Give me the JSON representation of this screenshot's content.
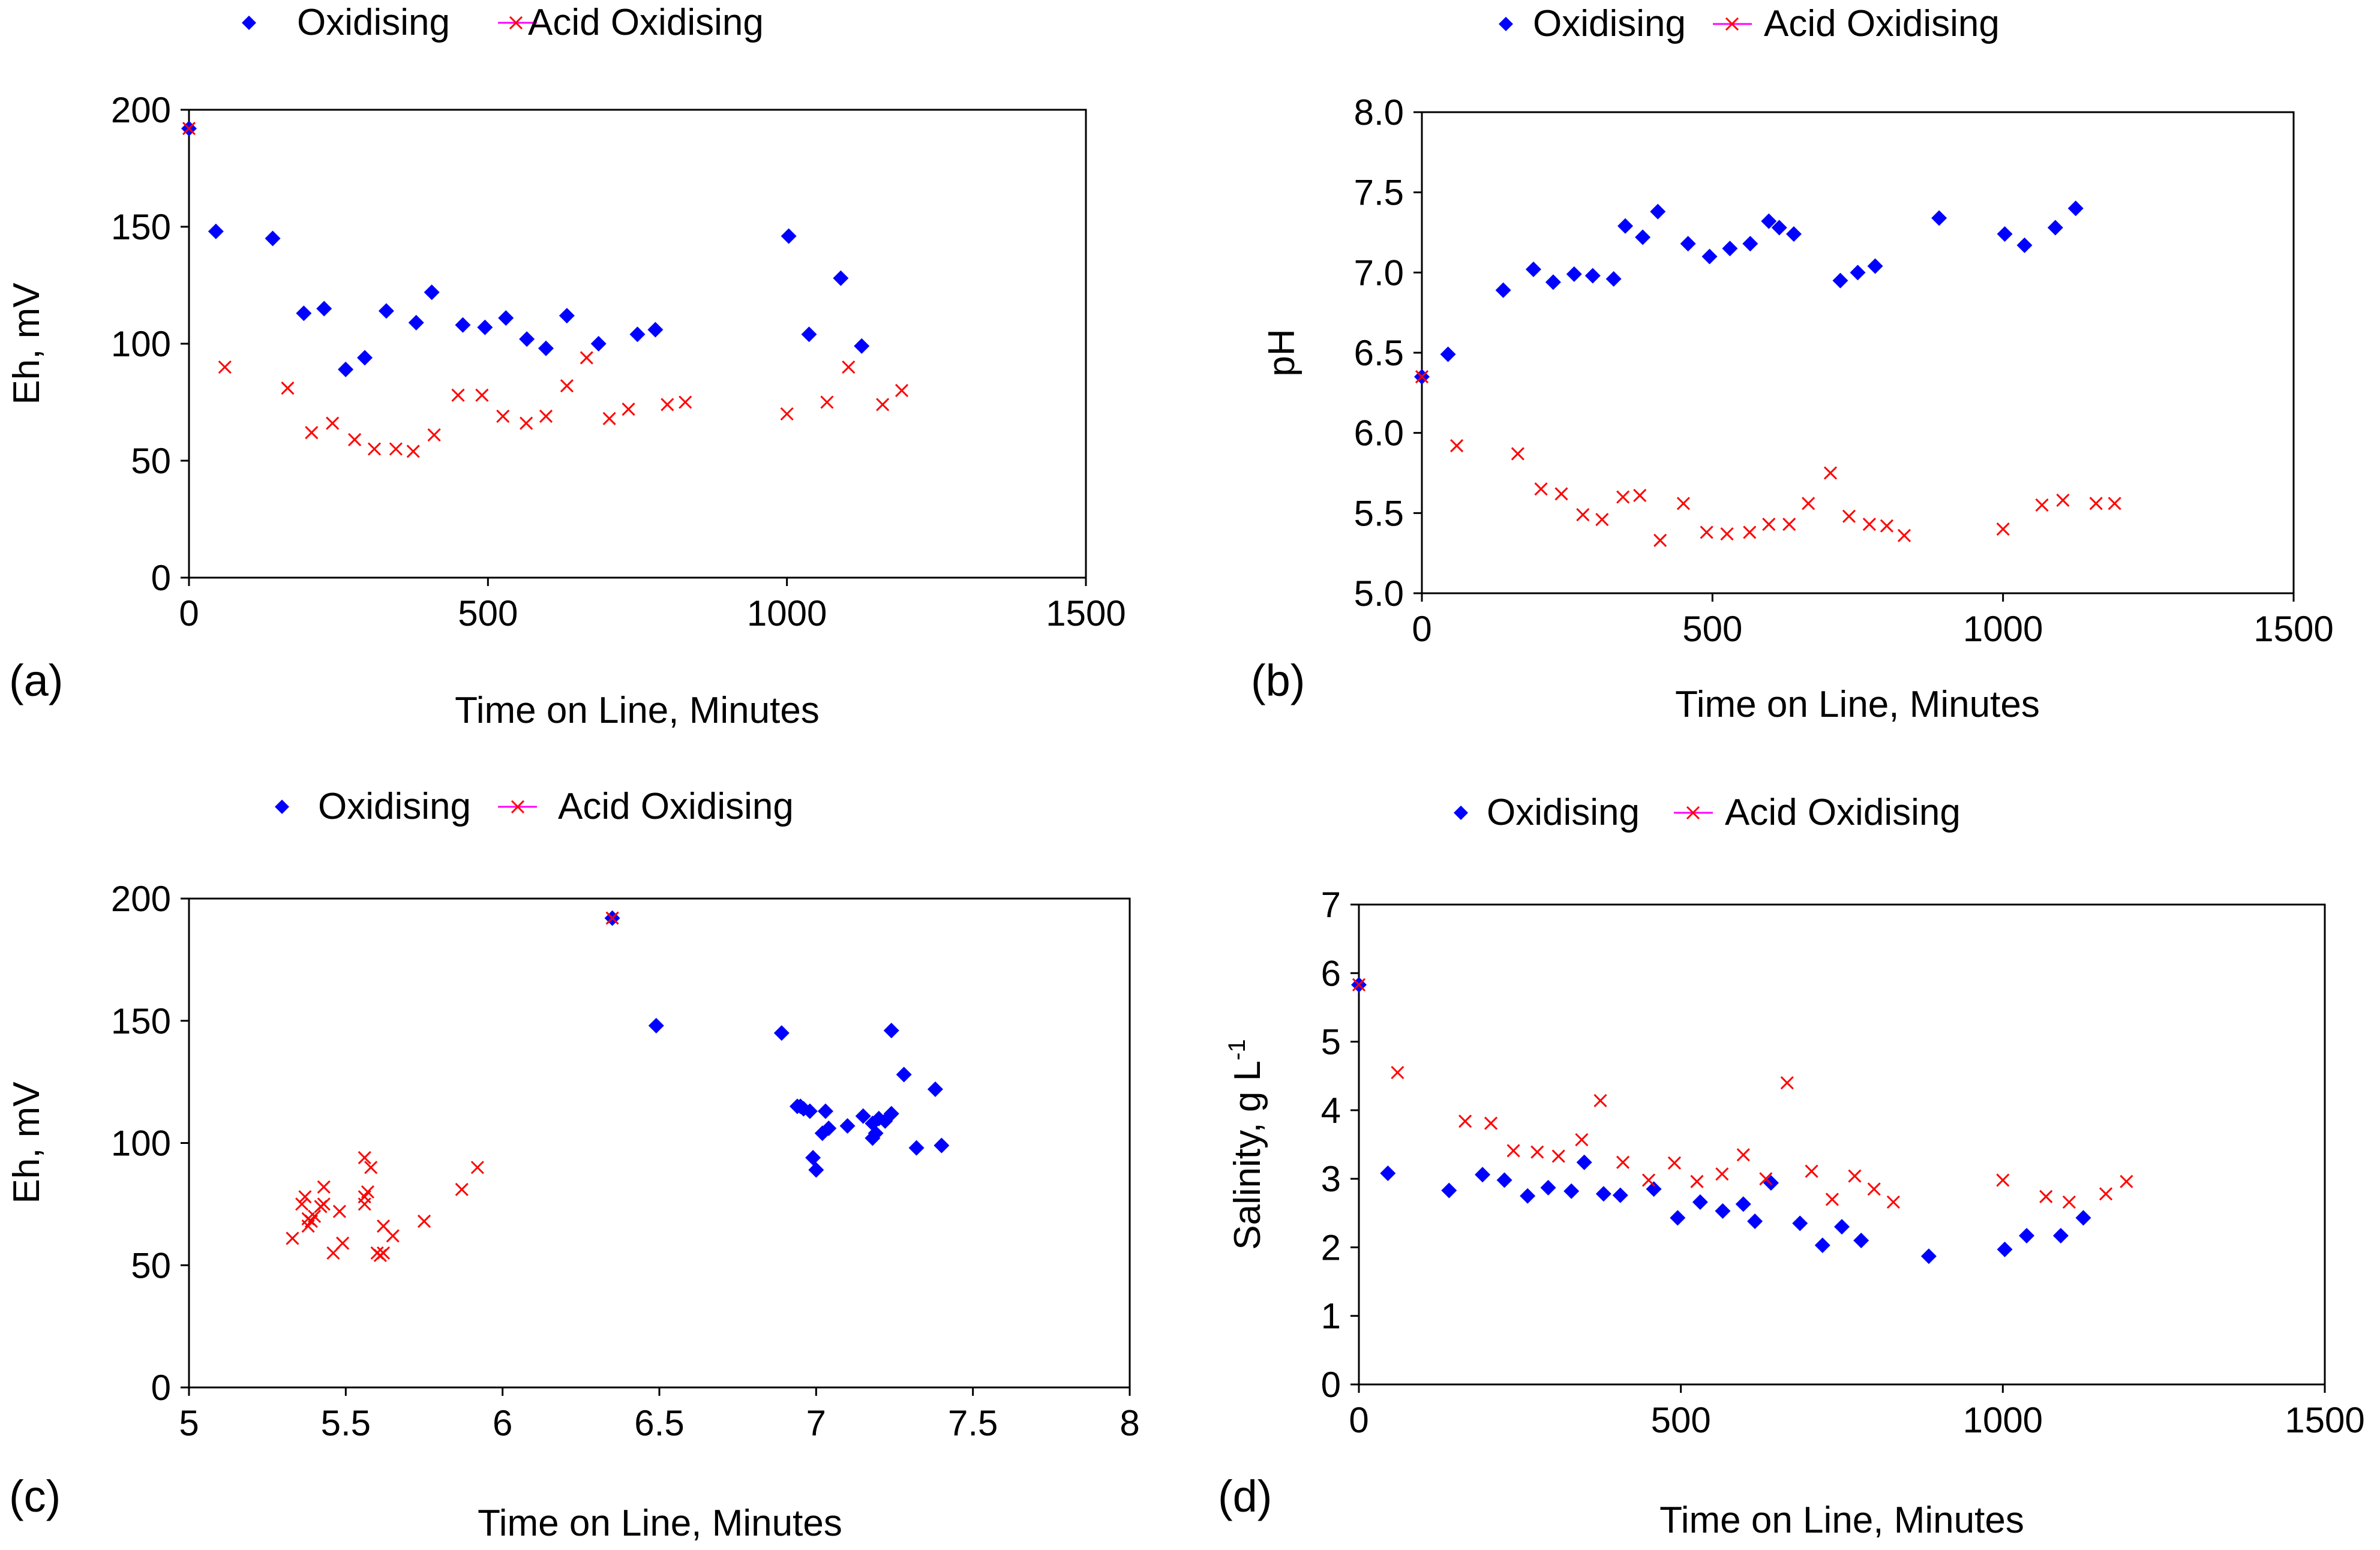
{
  "colors": {
    "oxidising": "#0000ff",
    "acid_oxidising": "#ff0000",
    "acid_line": "#ff00ff",
    "axis": "#000000"
  },
  "chart_data": [
    {
      "panel": "(a)",
      "type": "scatter",
      "xlabel": "Time on Line, Minutes",
      "ylabel": "Eh, mV",
      "ylabel_sup": "",
      "xlim": [
        0,
        1500
      ],
      "ylim": [
        0,
        200
      ],
      "xticks": [
        0,
        500,
        1000,
        1500
      ],
      "xtick_labels": [
        "0",
        "500",
        "1000",
        "1500"
      ],
      "yticks": [
        0,
        50,
        100,
        150,
        200
      ],
      "ytick_labels": [
        "0",
        "50",
        "100",
        "150",
        "200"
      ],
      "legend": [
        "Oxidising",
        "Acid Oxidising"
      ],
      "legend_position": "top",
      "series": [
        {
          "name": "Oxidising",
          "marker": "diamond",
          "points": [
            [
              0,
              192
            ],
            [
              45,
              148
            ],
            [
              140,
              145
            ],
            [
              192,
              113
            ],
            [
              226,
              115
            ],
            [
              262,
              89
            ],
            [
              294,
              94
            ],
            [
              330,
              114
            ],
            [
              380,
              109
            ],
            [
              406,
              122
            ],
            [
              458,
              108
            ],
            [
              495,
              107
            ],
            [
              530,
              111
            ],
            [
              565,
              102
            ],
            [
              597,
              98
            ],
            [
              632,
              112
            ],
            [
              685,
              100
            ],
            [
              750,
              104
            ],
            [
              780,
              106
            ],
            [
              1003,
              146
            ],
            [
              1037,
              104
            ],
            [
              1090,
              128
            ],
            [
              1125,
              99
            ]
          ]
        },
        {
          "name": "Acid Oxidising",
          "marker": "x",
          "points": [
            [
              0,
              192
            ],
            [
              60,
              90
            ],
            [
              165,
              81
            ],
            [
              205,
              62
            ],
            [
              240,
              66
            ],
            [
              277,
              59
            ],
            [
              310,
              55
            ],
            [
              346,
              55
            ],
            [
              375,
              54
            ],
            [
              410,
              61
            ],
            [
              450,
              78
            ],
            [
              490,
              78
            ],
            [
              525,
              69
            ],
            [
              564,
              66
            ],
            [
              597,
              69
            ],
            [
              632,
              82
            ],
            [
              665,
              94
            ],
            [
              703,
              68
            ],
            [
              735,
              72
            ],
            [
              800,
              74
            ],
            [
              830,
              75
            ],
            [
              1000,
              70
            ],
            [
              1067,
              75
            ],
            [
              1103,
              90
            ],
            [
              1160,
              74
            ],
            [
              1192,
              80
            ]
          ]
        }
      ]
    },
    {
      "panel": "(b)",
      "type": "scatter",
      "xlabel": "Time on Line, Minutes",
      "ylabel": "pH",
      "ylabel_sup": "",
      "xlim": [
        0,
        1500
      ],
      "ylim": [
        5.0,
        8.0
      ],
      "xticks": [
        0,
        500,
        1000,
        1500
      ],
      "xtick_labels": [
        "0",
        "500",
        "1000",
        "1500"
      ],
      "yticks": [
        5.0,
        5.5,
        6.0,
        6.5,
        7.0,
        7.5,
        8.0
      ],
      "ytick_labels": [
        "5.0",
        "5.5",
        "6.0",
        "6.5",
        "7.0",
        "7.5",
        "8.0"
      ],
      "legend": [
        "Oxidising",
        "Acid Oxidising"
      ],
      "legend_position": "top",
      "series": [
        {
          "name": "Oxidising",
          "marker": "diamond",
          "points": [
            [
              0,
              6.35
            ],
            [
              45,
              6.49
            ],
            [
              140,
              6.89
            ],
            [
              192,
              7.02
            ],
            [
              226,
              6.94
            ],
            [
              262,
              6.99
            ],
            [
              294,
              6.98
            ],
            [
              330,
              6.96
            ],
            [
              350,
              7.29
            ],
            [
              380,
              7.22
            ],
            [
              406,
              7.38
            ],
            [
              458,
              7.18
            ],
            [
              495,
              7.1
            ],
            [
              530,
              7.15
            ],
            [
              565,
              7.18
            ],
            [
              597,
              7.32
            ],
            [
              615,
              7.28
            ],
            [
              640,
              7.24
            ],
            [
              720,
              6.95
            ],
            [
              750,
              7.0
            ],
            [
              780,
              7.04
            ],
            [
              890,
              7.34
            ],
            [
              1003,
              7.24
            ],
            [
              1037,
              7.17
            ],
            [
              1090,
              7.28
            ],
            [
              1125,
              7.4
            ]
          ]
        },
        {
          "name": "Acid Oxidising",
          "marker": "x",
          "points": [
            [
              0,
              6.35
            ],
            [
              60,
              5.92
            ],
            [
              165,
              5.87
            ],
            [
              205,
              5.65
            ],
            [
              240,
              5.62
            ],
            [
              277,
              5.49
            ],
            [
              310,
              5.46
            ],
            [
              346,
              5.6
            ],
            [
              375,
              5.61
            ],
            [
              410,
              5.33
            ],
            [
              450,
              5.56
            ],
            [
              490,
              5.38
            ],
            [
              525,
              5.37
            ],
            [
              564,
              5.38
            ],
            [
              597,
              5.43
            ],
            [
              632,
              5.43
            ],
            [
              665,
              5.56
            ],
            [
              703,
              5.75
            ],
            [
              735,
              5.48
            ],
            [
              770,
              5.43
            ],
            [
              800,
              5.42
            ],
            [
              830,
              5.36
            ],
            [
              1000,
              5.4
            ],
            [
              1067,
              5.55
            ],
            [
              1103,
              5.58
            ],
            [
              1160,
              5.56
            ],
            [
              1192,
              5.56
            ]
          ]
        }
      ]
    },
    {
      "panel": "(c)",
      "type": "scatter",
      "xlabel": "Time on Line, Minutes",
      "ylabel": "Eh, mV",
      "ylabel_sup": "",
      "xlim": [
        5,
        8
      ],
      "ylim": [
        0,
        200
      ],
      "xticks": [
        5,
        5.5,
        6,
        6.5,
        7,
        7.5,
        8
      ],
      "xtick_labels": [
        "5",
        "5.5",
        "6",
        "6.5",
        "7",
        "7.5",
        "8"
      ],
      "yticks": [
        0,
        50,
        100,
        150,
        200
      ],
      "ytick_labels": [
        "0",
        "50",
        "100",
        "150",
        "200"
      ],
      "legend": [
        "Oxidising",
        "Acid Oxidising"
      ],
      "legend_position": "top",
      "series": [
        {
          "name": "Oxidising",
          "marker": "diamond",
          "points": [
            [
              6.35,
              192
            ],
            [
              6.49,
              148
            ],
            [
              6.89,
              145
            ],
            [
              6.94,
              115
            ],
            [
              6.96,
              114
            ],
            [
              6.98,
              113
            ],
            [
              6.99,
              94
            ],
            [
              7.0,
              89
            ],
            [
              7.02,
              104
            ],
            [
              7.04,
              106
            ],
            [
              7.1,
              107
            ],
            [
              7.15,
              111
            ],
            [
              7.18,
              108
            ],
            [
              7.18,
              102
            ],
            [
              7.22,
              109
            ],
            [
              7.24,
              112
            ],
            [
              7.24,
              146
            ],
            [
              7.28,
              128
            ],
            [
              7.32,
              98
            ],
            [
              7.38,
              122
            ],
            [
              7.4,
              99
            ],
            [
              6.95,
              115
            ],
            [
              7.03,
              113
            ],
            [
              7.19,
              104
            ],
            [
              7.2,
              110
            ]
          ]
        },
        {
          "name": "Acid Oxidising",
          "marker": "x",
          "points": [
            [
              6.35,
              192
            ],
            [
              5.92,
              90
            ],
            [
              5.87,
              81
            ],
            [
              5.75,
              68
            ],
            [
              5.65,
              62
            ],
            [
              5.62,
              66
            ],
            [
              5.62,
              55
            ],
            [
              5.61,
              54
            ],
            [
              5.6,
              55
            ],
            [
              5.49,
              59
            ],
            [
              5.46,
              55
            ],
            [
              5.56,
              75
            ],
            [
              5.56,
              78
            ],
            [
              5.56,
              94
            ],
            [
              5.58,
              90
            ],
            [
              5.43,
              82
            ],
            [
              5.43,
              75
            ],
            [
              5.42,
              74
            ],
            [
              5.4,
              70
            ],
            [
              5.38,
              69
            ],
            [
              5.38,
              66
            ],
            [
              5.37,
              78
            ],
            [
              5.36,
              75
            ],
            [
              5.33,
              61
            ],
            [
              5.48,
              72
            ],
            [
              5.57,
              80
            ],
            [
              5.39,
              68
            ]
          ]
        }
      ]
    },
    {
      "panel": "(d)",
      "type": "scatter",
      "xlabel": "Time on Line, Minutes",
      "ylabel": "Salinity, g L",
      "ylabel_sup": "-1",
      "xlim": [
        0,
        1500
      ],
      "ylim": [
        0,
        7
      ],
      "xticks": [
        0,
        500,
        1000,
        1500
      ],
      "xtick_labels": [
        "0",
        "500",
        "1000",
        "1500"
      ],
      "yticks": [
        0,
        1,
        2,
        3,
        4,
        5,
        6,
        7
      ],
      "ytick_labels": [
        "0",
        "1",
        "2",
        "3",
        "4",
        "5",
        "6",
        "7"
      ],
      "legend": [
        "Oxidising",
        "Acid Oxidising"
      ],
      "legend_position": "top",
      "series": [
        {
          "name": "Oxidising",
          "marker": "diamond",
          "points": [
            [
              0,
              5.83
            ],
            [
              45,
              3.08
            ],
            [
              140,
              2.83
            ],
            [
              192,
              3.06
            ],
            [
              226,
              2.98
            ],
            [
              262,
              2.75
            ],
            [
              294,
              2.87
            ],
            [
              330,
              2.82
            ],
            [
              350,
              3.24
            ],
            [
              380,
              2.78
            ],
            [
              406,
              2.76
            ],
            [
              458,
              2.85
            ],
            [
              495,
              2.43
            ],
            [
              530,
              2.66
            ],
            [
              565,
              2.53
            ],
            [
              597,
              2.63
            ],
            [
              615,
              2.38
            ],
            [
              640,
              2.94
            ],
            [
              685,
              2.35
            ],
            [
              720,
              2.03
            ],
            [
              750,
              2.3
            ],
            [
              780,
              2.1
            ],
            [
              885,
              1.87
            ],
            [
              1003,
              1.97
            ],
            [
              1037,
              2.17
            ],
            [
              1090,
              2.17
            ],
            [
              1125,
              2.43
            ]
          ]
        },
        {
          "name": "Acid Oxidising",
          "marker": "x",
          "points": [
            [
              0,
              5.83
            ],
            [
              60,
              4.55
            ],
            [
              165,
              3.84
            ],
            [
              205,
              3.81
            ],
            [
              240,
              3.41
            ],
            [
              277,
              3.39
            ],
            [
              310,
              3.33
            ],
            [
              346,
              3.57
            ],
            [
              375,
              4.14
            ],
            [
              410,
              3.24
            ],
            [
              450,
              2.98
            ],
            [
              490,
              3.23
            ],
            [
              525,
              2.96
            ],
            [
              564,
              3.07
            ],
            [
              597,
              3.35
            ],
            [
              632,
              3.0
            ],
            [
              665,
              4.4
            ],
            [
              703,
              3.11
            ],
            [
              735,
              2.7
            ],
            [
              770,
              3.04
            ],
            [
              800,
              2.85
            ],
            [
              830,
              2.66
            ],
            [
              1000,
              2.98
            ],
            [
              1067,
              2.74
            ],
            [
              1103,
              2.66
            ],
            [
              1160,
              2.78
            ],
            [
              1192,
              2.96
            ]
          ]
        }
      ]
    }
  ]
}
